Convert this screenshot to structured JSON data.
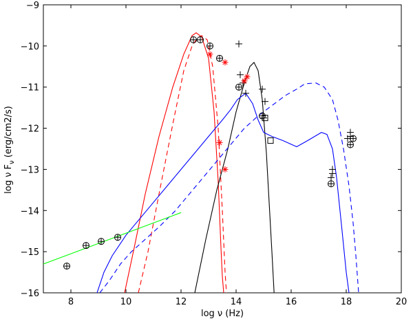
{
  "chart_data": {
    "type": "line",
    "title": "",
    "xlabel": "log ν (Hz)",
    "ylabel": "log ν F_ν (erg/cm2/s)",
    "xlim": [
      7,
      20
    ],
    "ylim": [
      -16,
      -9
    ],
    "x_ticks": [
      8,
      10,
      12,
      14,
      16,
      18,
      20
    ],
    "y_ticks": [
      -16,
      -15,
      -14,
      -13,
      -12,
      -11,
      -10,
      -9
    ],
    "colors": {
      "red": "#ff0000",
      "blue": "#0000ff",
      "black": "#000000",
      "green": "#00ff00"
    },
    "series": [
      {
        "name": "red-solid",
        "color": "red",
        "dash": "solid",
        "x": [
          9.95,
          10.3,
          10.7,
          11.2,
          11.7,
          12.1,
          12.4,
          12.55,
          12.75,
          13.0,
          13.2,
          13.35,
          13.45,
          13.5,
          13.55
        ],
        "y": [
          -16.0,
          -14.9,
          -13.6,
          -12.2,
          -11.0,
          -10.2,
          -9.75,
          -9.68,
          -9.78,
          -10.3,
          -11.6,
          -13.3,
          -14.9,
          -15.6,
          -16.0
        ]
      },
      {
        "name": "red-dashed",
        "color": "red",
        "dash": "dashed",
        "x": [
          10.45,
          10.8,
          11.2,
          11.7,
          12.1,
          12.4,
          12.6,
          12.75,
          12.95,
          13.15,
          13.35,
          13.5,
          13.6,
          13.65
        ],
        "y": [
          -16.0,
          -15.0,
          -13.6,
          -11.9,
          -10.6,
          -10.0,
          -9.8,
          -9.75,
          -9.85,
          -10.5,
          -12.0,
          -14.0,
          -15.5,
          -16.0
        ]
      },
      {
        "name": "black-solid",
        "color": "black",
        "dash": "solid",
        "x": [
          12.5,
          12.9,
          13.3,
          13.7,
          14.0,
          14.3,
          14.5,
          14.65,
          14.8,
          14.95,
          15.1,
          15.2,
          15.3,
          15.38
        ],
        "y": [
          -16.0,
          -14.7,
          -13.5,
          -12.5,
          -11.6,
          -10.9,
          -10.5,
          -10.4,
          -10.6,
          -11.3,
          -12.6,
          -13.8,
          -15.0,
          -16.0
        ]
      },
      {
        "name": "blue-solid",
        "color": "blue",
        "dash": "solid",
        "x": [
          8.95,
          9.2,
          9.5,
          9.8,
          10.0,
          10.5,
          11.0,
          11.5,
          12.0,
          12.5,
          13.0,
          13.5,
          13.8,
          14.05,
          14.35,
          14.6,
          14.8,
          15.0,
          15.3,
          15.7,
          16.2,
          16.6,
          17.1,
          17.3,
          17.5,
          17.65,
          17.85,
          18.0,
          18.1
        ],
        "y": [
          -16.0,
          -15.5,
          -15.1,
          -14.8,
          -14.6,
          -14.2,
          -13.8,
          -13.4,
          -13.0,
          -12.6,
          -12.2,
          -11.8,
          -11.55,
          -11.3,
          -11.15,
          -11.4,
          -11.8,
          -12.1,
          -12.2,
          -12.3,
          -12.45,
          -12.3,
          -12.1,
          -12.15,
          -12.5,
          -13.2,
          -14.5,
          -15.5,
          -16.0
        ]
      },
      {
        "name": "blue-dashed",
        "color": "blue",
        "dash": "dashed",
        "x": [
          9.05,
          9.4,
          9.8,
          10.2,
          10.7,
          11.2,
          11.8,
          12.3,
          12.8,
          13.3,
          13.8,
          14.3,
          14.8,
          15.3,
          15.8,
          16.2,
          16.5,
          16.9,
          17.2,
          17.5,
          17.7,
          17.9,
          18.1,
          18.25,
          18.35,
          18.45
        ],
        "y": [
          -16.0,
          -15.7,
          -15.3,
          -15.0,
          -14.7,
          -14.4,
          -14.0,
          -13.6,
          -13.2,
          -12.8,
          -12.4,
          -12.0,
          -11.7,
          -11.45,
          -11.2,
          -11.05,
          -10.92,
          -10.9,
          -11.0,
          -11.3,
          -11.8,
          -12.5,
          -13.4,
          -14.3,
          -15.1,
          -16.0
        ]
      },
      {
        "name": "green-line",
        "color": "green",
        "dash": "solid",
        "x": [
          7.0,
          12.0
        ],
        "y": [
          -15.3,
          -14.05
        ]
      }
    ],
    "markers": [
      {
        "name": "circle-plus",
        "color": "black",
        "symbol": "circle-plus",
        "x": [
          7.85,
          8.55,
          9.1,
          9.7,
          12.45,
          12.7,
          13.05,
          13.4,
          14.1,
          14.95,
          17.45,
          18.15,
          18.25
        ],
        "y": [
          -15.35,
          -14.85,
          -14.75,
          -14.65,
          -9.85,
          -9.85,
          -10.0,
          -10.3,
          -11.0,
          -11.7,
          -13.35,
          -12.4,
          -12.25
        ]
      },
      {
        "name": "plus",
        "color": "black",
        "symbol": "plus",
        "x": [
          14.1,
          14.15,
          14.25,
          14.35,
          14.95,
          15.05,
          15.0,
          17.5,
          17.5,
          17.45,
          18.05,
          18.15,
          18.15
        ],
        "y": [
          -9.95,
          -10.7,
          -10.9,
          -11.15,
          -11.05,
          -11.35,
          -11.75,
          -13.0,
          -13.1,
          -13.2,
          -12.25,
          -12.1,
          -12.2
        ]
      },
      {
        "name": "square",
        "color": "black",
        "symbol": "square",
        "x": [
          15.05,
          15.25
        ],
        "y": [
          -11.75,
          -12.3
        ]
      },
      {
        "name": "asterisk",
        "color": "red",
        "symbol": "asterisk",
        "x": [
          13.05,
          13.6,
          13.4,
          13.6,
          14.3,
          14.4
        ],
        "y": [
          -10.2,
          -10.4,
          -12.35,
          -13.0,
          -10.85,
          -10.75
        ]
      }
    ]
  }
}
